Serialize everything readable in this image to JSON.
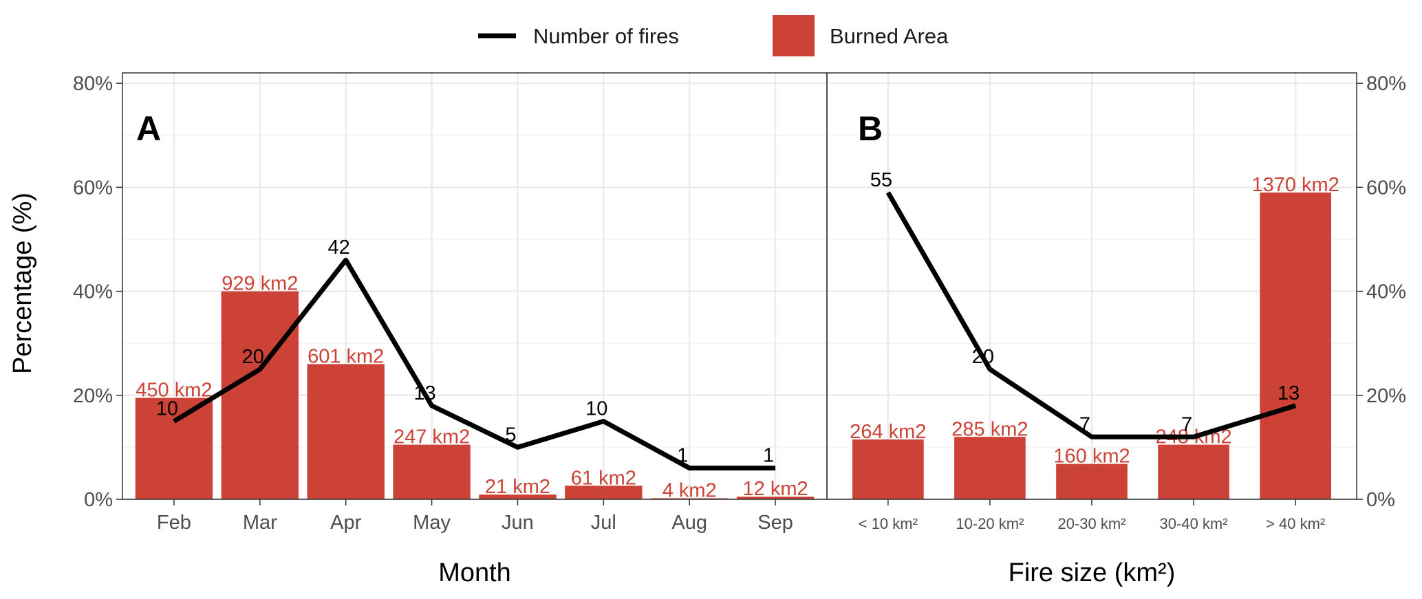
{
  "colors": {
    "bar": "#cc4236",
    "line": "#000000",
    "grid": "#ebebeb",
    "frame": "#333333"
  },
  "legend": {
    "line_label": "Number of fires",
    "bar_label": "Burned Area"
  },
  "y_axis": {
    "title": "Percentage (%)",
    "ticks": [
      0,
      20,
      40,
      60,
      80
    ],
    "tick_labels": [
      "0%",
      "20%",
      "40%",
      "60%",
      "80%"
    ],
    "ylim": [
      0,
      82
    ]
  },
  "chart_data": [
    {
      "type": "bar",
      "panel": "A",
      "xlabel": "Month",
      "ylabel": "Percentage (%)",
      "categories": [
        "Feb",
        "Mar",
        "Apr",
        "May",
        "Jun",
        "Jul",
        "Aug",
        "Sep"
      ],
      "series": [
        {
          "name": "Burned Area",
          "type": "bar",
          "values": [
            19.5,
            40,
            26,
            10.5,
            0.9,
            2.6,
            0.2,
            0.5
          ],
          "labels": [
            "450 km2",
            "929 km2",
            "601 km2",
            "247 km2",
            "21 km2",
            "61 km2",
            "4 km2",
            "12 km2"
          ]
        },
        {
          "name": "Number of fires",
          "type": "line",
          "values": [
            15,
            25,
            46,
            18,
            10,
            15,
            6,
            6
          ],
          "labels": [
            "10",
            "20",
            "42",
            "13",
            "5",
            "10",
            "1",
            "1"
          ]
        }
      ]
    },
    {
      "type": "bar",
      "panel": "B",
      "xlabel": "Fire size (km²)",
      "ylabel": "Percentage (%)",
      "categories": [
        "< 10 km²",
        "10-20 km²",
        "20-30 km²",
        "30-40 km²",
        "> 40 km²"
      ],
      "series": [
        {
          "name": "Burned Area",
          "type": "bar",
          "values": [
            11.5,
            12,
            6.8,
            10.5,
            59
          ],
          "labels": [
            "264 km2",
            "285 km2",
            "160 km2",
            "248 km2",
            "1370 km2"
          ]
        },
        {
          "name": "Number of fires",
          "type": "line",
          "values": [
            59,
            25,
            12,
            12,
            18
          ],
          "labels": [
            "55",
            "20",
            "7",
            "7",
            "13"
          ]
        }
      ]
    }
  ]
}
